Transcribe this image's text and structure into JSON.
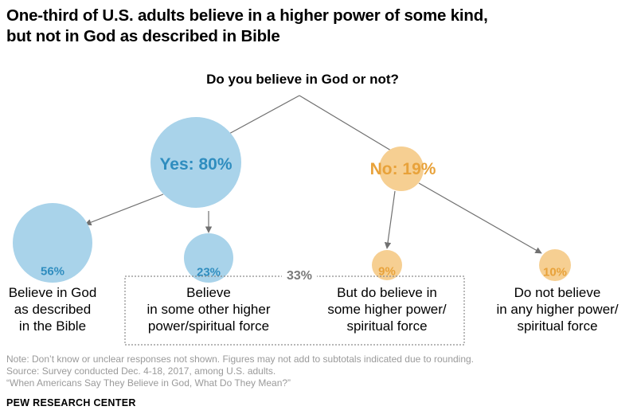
{
  "title": {
    "line1": "One-third of U.S. adults believe in a higher power of some kind,",
    "line2": "but not in God as described in Bible"
  },
  "question": "Do you believe in God or not?",
  "nodes": {
    "yes": {
      "label": "Yes: 80%",
      "value": 80,
      "color": "#a9d3ea"
    },
    "no": {
      "label": "No: 19%",
      "value": 19,
      "color": "#f6cf92"
    }
  },
  "leaves": [
    {
      "value_label": "56%",
      "value": 56,
      "lines": [
        "Believe in God",
        "as described",
        "in the Bible"
      ],
      "group": "yes"
    },
    {
      "value_label": "23%",
      "value": 23,
      "lines": [
        "Believe",
        "in some other higher",
        "power/spiritual force"
      ],
      "group": "yes"
    },
    {
      "value_label": "9%",
      "value": 9,
      "lines": [
        "But do believe in",
        "some higher power/",
        "spiritual force"
      ],
      "group": "no"
    },
    {
      "value_label": "10%",
      "value": 10,
      "lines": [
        "Do not believe",
        "in any higher power/",
        "spiritual force"
      ],
      "group": "no"
    }
  ],
  "bracket_label": "33%",
  "notes": {
    "note": "Note: Don’t know or unclear responses not shown. Figures may not add to subtotals indicated due to rounding.",
    "source": "Source: Survey conducted Dec. 4-18, 2017, among U.S. adults.",
    "citation": "“When Americans Say They Believe in God, What Do They Mean?”"
  },
  "org": "PEW RESEARCH CENTER",
  "colors": {
    "blue_text": "#2f8dbf",
    "orange_text": "#e8a23a",
    "line": "#707070",
    "bracket": "#8c8c8c"
  }
}
